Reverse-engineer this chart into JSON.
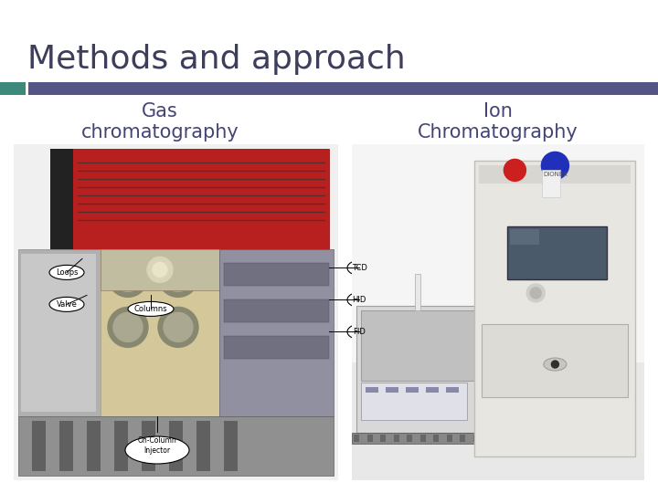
{
  "title": "Methods and approach",
  "title_color": "#3d3d5c",
  "title_fontsize": 26,
  "bg_color": "#ffffff",
  "bar_teal_color": "#3d8a7a",
  "bar_blue_color": "#545487",
  "col1_label": "Gas\nchromatography",
  "col2_label": "Ion\nChromatography",
  "label_fontsize": 15,
  "label_color": "#454575",
  "figsize": [
    7.2,
    5.4
  ],
  "dpi": 100
}
